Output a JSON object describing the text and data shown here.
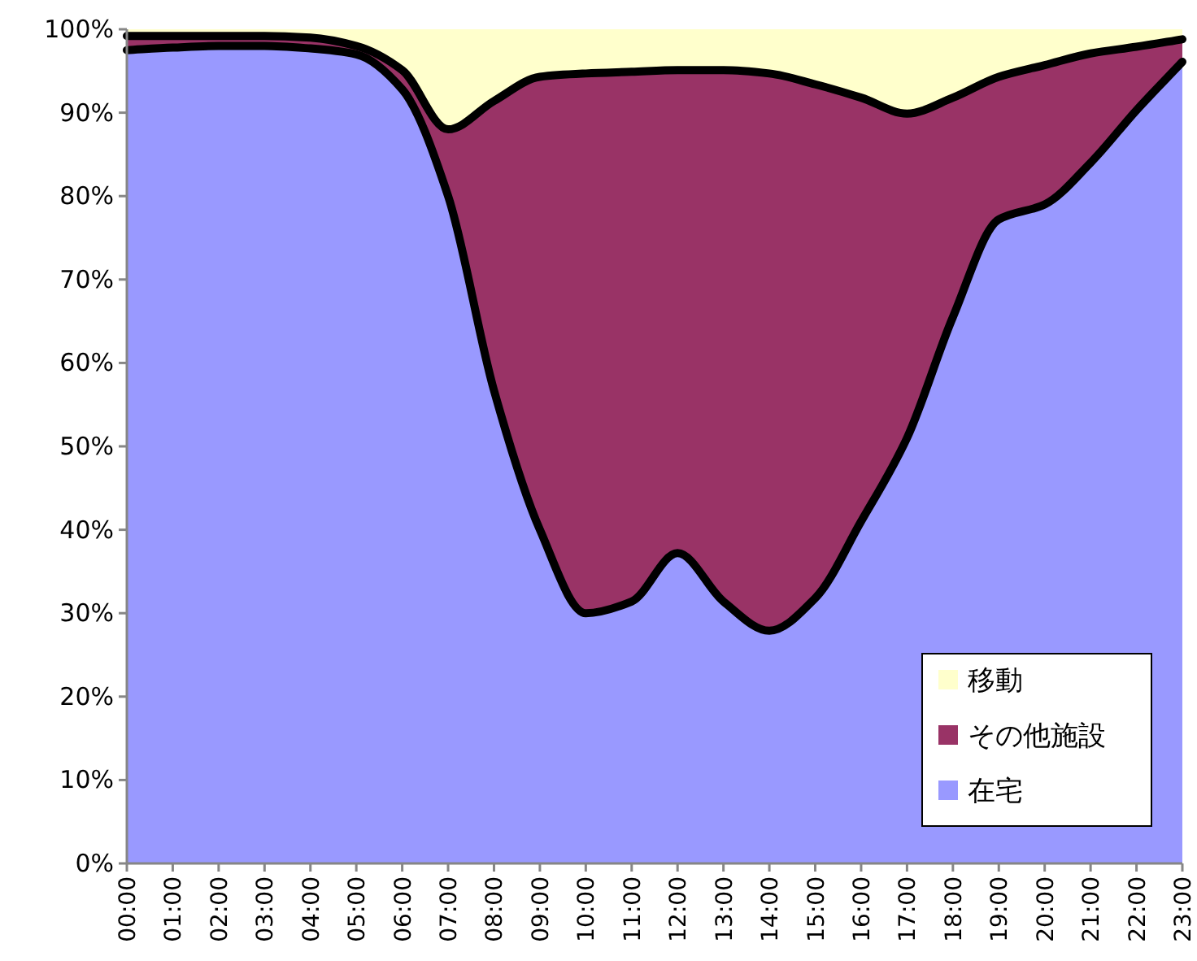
{
  "chart_data": {
    "type": "area",
    "stacked": true,
    "legend": "bottom right",
    "categories": [
      "00:00",
      "01:00",
      "02:00",
      "03:00",
      "04:00",
      "05:00",
      "06:00",
      "07:00",
      "08:00",
      "09:00",
      "10:00",
      "11:00",
      "12:00",
      "13:00",
      "14:00",
      "15:00",
      "16:00",
      "17:00",
      "18:00",
      "19:00",
      "20:00",
      "21:00",
      "22:00",
      "23:00"
    ],
    "series": [
      {
        "name": "在宅",
        "color": "#9999ff",
        "values": [
          97.5,
          97.8,
          98,
          98,
          97.7,
          97,
          92.8,
          80,
          56.7,
          40,
          30,
          31.4,
          37.2,
          31.4,
          27.9,
          31.8,
          41,
          51,
          65.5,
          77.2,
          79,
          84,
          90.3,
          96.1
        ]
      },
      {
        "name": "その他施設",
        "color": "#993366",
        "values": [
          1.7,
          1.4,
          1.2,
          1.2,
          1.3,
          1.0,
          2.3,
          8,
          34.7,
          54.3,
          64.7,
          63.5,
          57.9,
          63.7,
          66.8,
          61.6,
          50.8,
          38.9,
          26.3,
          17.1,
          16.7,
          13.1,
          7.6,
          2.7
        ]
      },
      {
        "name": "移動",
        "color": "#ffffcc",
        "values": [
          0.8,
          0.8,
          0.8,
          0.8,
          1.0,
          2.0,
          4.9,
          12,
          8.6,
          5.7,
          5.3,
          5.1,
          4.9,
          4.9,
          5.3,
          6.6,
          8.2,
          10.1,
          8.2,
          5.7,
          4.3,
          2.9,
          2.1,
          1.2
        ]
      }
    ],
    "ylim": [
      0,
      100
    ],
    "yticks": [
      {
        "value": 0,
        "label": "0%"
      },
      {
        "value": 10,
        "label": "10%"
      },
      {
        "value": 20,
        "label": "20%"
      },
      {
        "value": 30,
        "label": "30%"
      },
      {
        "value": 40,
        "label": "40%"
      },
      {
        "value": 50,
        "label": "50%"
      },
      {
        "value": 60,
        "label": "60%"
      },
      {
        "value": 70,
        "label": "70%"
      },
      {
        "value": 80,
        "label": "80%"
      },
      {
        "value": 90,
        "label": "90%"
      },
      {
        "value": 100,
        "label": "100%"
      }
    ]
  }
}
